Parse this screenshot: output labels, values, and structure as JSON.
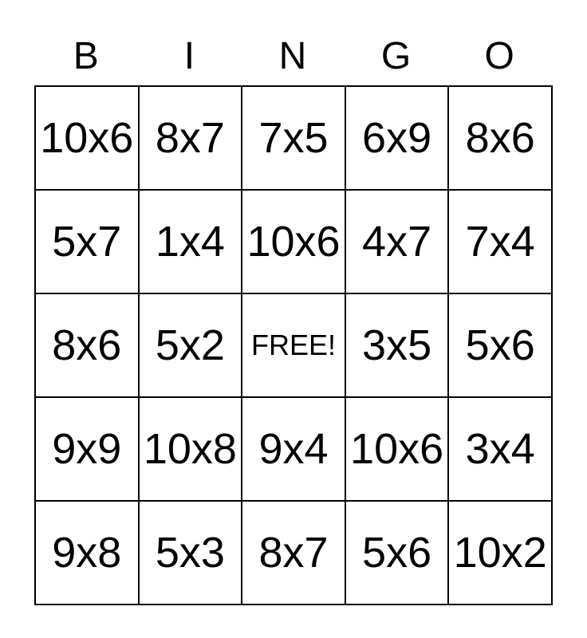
{
  "page": {
    "background_color": "#ffffff",
    "grid_line_color": "#000000",
    "text_color": "#000000"
  },
  "header": {
    "letters": [
      "B",
      "I",
      "N",
      "G",
      "O"
    ]
  },
  "board": {
    "rows": [
      [
        "10x6",
        "8x7",
        "7x5",
        "6x9",
        "8x6"
      ],
      [
        "5x7",
        "1x4",
        "10x6",
        "4x7",
        "7x4"
      ],
      [
        "8x6",
        "5x2",
        "FREE!",
        "3x5",
        "5x6"
      ],
      [
        "9x9",
        "10x8",
        "9x4",
        "10x6",
        "3x4"
      ],
      [
        "9x8",
        "5x3",
        "8x7",
        "5x6",
        "10x2"
      ]
    ],
    "free_cell": {
      "row": 2,
      "col": 2,
      "label": "FREE!"
    }
  }
}
